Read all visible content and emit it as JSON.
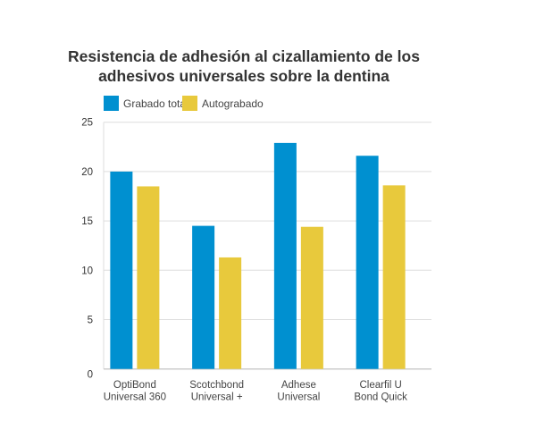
{
  "chart_data": {
    "type": "bar",
    "title": [
      "Resistencia de adhesión al cizallamiento de los",
      "adhesivos universales sobre la dentina"
    ],
    "categories": [
      [
        "OptiBond",
        "Universal 360"
      ],
      [
        "Scotchbond",
        "Universal +"
      ],
      [
        "Adhese",
        "Universal"
      ],
      [
        "Clearfil U",
        "Bond Quick"
      ]
    ],
    "series": [
      {
        "name": "Grabado total",
        "color": "#0090d0",
        "values": [
          20.0,
          14.5,
          22.9,
          21.6
        ]
      },
      {
        "name": "Autograbado",
        "color": "#e8c93c",
        "values": [
          18.5,
          11.3,
          14.4,
          18.6
        ]
      }
    ],
    "ylim": [
      0,
      25
    ],
    "yticks": [
      0,
      5,
      10,
      15,
      20,
      25
    ],
    "grid": true,
    "legend": "top-left"
  }
}
